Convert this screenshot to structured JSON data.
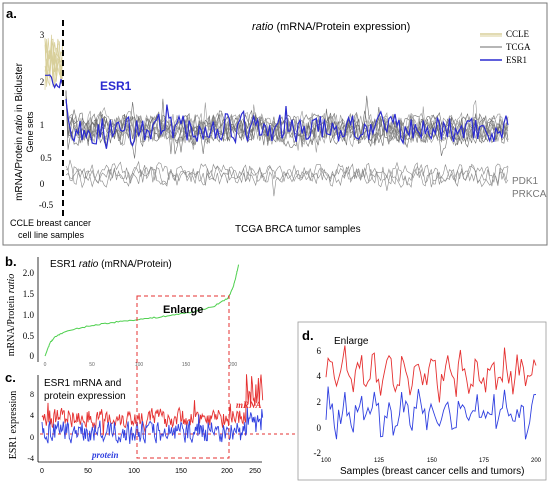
{
  "panel_a": {
    "letter": "a.",
    "title_italic": "ratio",
    "title_rest": " (mRNA/Protein expression)",
    "ylabel_pre": "mRNA/Protein ",
    "ylabel_italic": "ratio",
    "ylabel_post": " in Bicluster",
    "ylabel2": "Gene sets",
    "yticks": [
      "3",
      "2",
      "1",
      "0.5",
      "0",
      "-0.5"
    ],
    "esr1_label": "ESR1",
    "right_labels": [
      "PDK1",
      "PRKCA"
    ],
    "xlabel_left_1": "CCLE breast cancer",
    "xlabel_left_2": "cell line samples",
    "xlabel_right": "TCGA BRCA tumor samples",
    "legend": [
      {
        "label": "CCLE",
        "color": "#d8cf9a"
      },
      {
        "label": "TCGA",
        "color": "#8a8a8a"
      },
      {
        "label": "ESR1",
        "color": "#2b2bd0"
      }
    ]
  },
  "panel_b": {
    "letter": "b.",
    "title_pre": "ESR1 ",
    "title_italic": "ratio",
    "title_post": " (mRNA/Protein)",
    "ylabel_pre": "mRNA/Protein ",
    "ylabel_italic": "ratio",
    "yticks": [
      "2.0",
      "1.5",
      "1.0",
      "0.5",
      "0"
    ],
    "xticks": [
      "0",
      "50",
      "100",
      "150",
      "200"
    ],
    "enlarge_label": "Enlarge"
  },
  "panel_c": {
    "letter": "c.",
    "title_1": "ESR1 mRNA and",
    "title_2": "protein expression",
    "ylabel": "ESR1 expression",
    "yticks": [
      "8",
      "4",
      "0",
      "-4"
    ],
    "xticks": [
      "0",
      "50",
      "100",
      "150",
      "200",
      "250"
    ],
    "mrna_label": "mRNA",
    "protein_label": "protein"
  },
  "panel_d": {
    "letter": "d.",
    "title": "Enlarge",
    "yticks": [
      "6",
      "4",
      "2",
      "0",
      "-2"
    ],
    "xticks": [
      "100",
      "125",
      "150",
      "175",
      "200"
    ],
    "xlabel": "Samples (breast cancer cells and tumors)"
  },
  "chart_data": [
    {
      "type": "line",
      "panel": "a",
      "title": "ratio (mRNA/Protein expression)",
      "ylabel": "mRNA/Protein ratio in Bicluster Gene sets",
      "xlabel": "TCGA BRCA tumor samples",
      "ylim": [
        -0.7,
        3.1
      ],
      "series": [
        {
          "name": "CCLE",
          "note_level": 2.4
        },
        {
          "name": "TCGA",
          "level": 0.95
        },
        {
          "name": "ESR1",
          "level": 0.95
        },
        {
          "name": "PDK1",
          "level": 0.0
        },
        {
          "name": "PRKCA",
          "level": -0.1
        }
      ],
      "annotations": [
        "ESR1",
        "PDK1",
        "PRKCA",
        "CCLE breast cancer cell line samples"
      ]
    },
    {
      "type": "line",
      "panel": "b",
      "title": "ESR1 ratio (mRNA/Protein)",
      "ylabel": "mRNA/Protein ratio",
      "xlim": [
        0,
        210
      ],
      "ylim": [
        -0.1,
        2.3
      ],
      "x": [
        0,
        5,
        10,
        20,
        40,
        60,
        80,
        100,
        120,
        140,
        160,
        180,
        195,
        200,
        203,
        206
      ],
      "values": [
        0.05,
        0.35,
        0.5,
        0.62,
        0.74,
        0.82,
        0.88,
        0.93,
        0.98,
        1.05,
        1.12,
        1.25,
        1.45,
        1.7,
        1.95,
        2.25
      ]
    },
    {
      "type": "line",
      "panel": "c",
      "title": "ESR1 mRNA and protein expression",
      "ylabel": "ESR1 expression",
      "xlim": [
        0,
        260
      ],
      "ylim": [
        -4,
        12
      ],
      "series": [
        {
          "name": "mRNA",
          "level": 4.0
        },
        {
          "name": "protein",
          "level": 1.5
        }
      ]
    },
    {
      "type": "line",
      "panel": "d",
      "title": "Enlarge",
      "xlabel": "Samples (breast cancer cells and tumors)",
      "xlim": [
        100,
        200
      ],
      "ylim": [
        -2,
        6
      ],
      "series": [
        {
          "name": "mRNA",
          "level": 4.2
        },
        {
          "name": "protein",
          "level": 1.3
        }
      ]
    }
  ]
}
